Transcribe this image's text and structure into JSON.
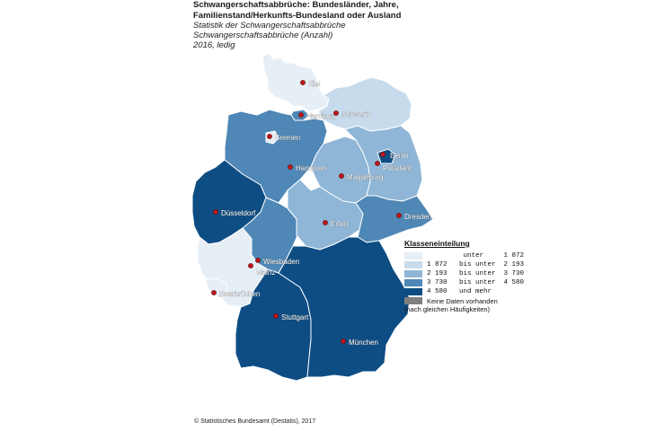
{
  "header": {
    "title_line1": "Schwangerschaftsabbrüche: Bundesländer, Jahre,",
    "title_line2": "Familienstand/Herkunfts-Bundesland oder Ausland",
    "subtitle_line1": "Statistik der Schwangerschaftsabbrüche",
    "subtitle_line2": "Schwangerschaftsabbrüche (Anzahl)",
    "subtitle_line3": "2016, ledig"
  },
  "colors": {
    "class1": "#e6eef6",
    "class2": "#c7dbed",
    "class3": "#8fb6d6",
    "class4": "#4f87b6",
    "class5": "#0e4d84",
    "nodata": "#7f7f7f",
    "city_dot": "#c0161d"
  },
  "legend": {
    "title": "Klasseneinteilung",
    "rows": [
      {
        "label": "         unter     1 872",
        "color": "#e6eef6"
      },
      {
        "label": "1 872   bis unter  2 193",
        "color": "#c7dbed"
      },
      {
        "label": "2 193   bis unter  3 730",
        "color": "#8fb6d6"
      },
      {
        "label": "3 730   bis unter  4 580",
        "color": "#4f87b6"
      },
      {
        "label": "4 580   und mehr",
        "color": "#0e4d84"
      },
      {
        "label": "Keine Daten vorhanden",
        "color": "#7f7f7f"
      }
    ],
    "note": "(nach gleichen Häufigkeiten)"
  },
  "cities": [
    "Kiel",
    "Hamburg",
    "Schwerin",
    "Bremen",
    "Hannover",
    "Berlin",
    "Potsdam",
    "Magdeburg",
    "Düsseldorf",
    "Erfurt",
    "Dresden",
    "Wiesbaden",
    "Mainz",
    "Saarbrücken",
    "Stuttgart",
    "München"
  ],
  "footer": "© Statistisches Bundesamt (Destatis), 2017"
}
